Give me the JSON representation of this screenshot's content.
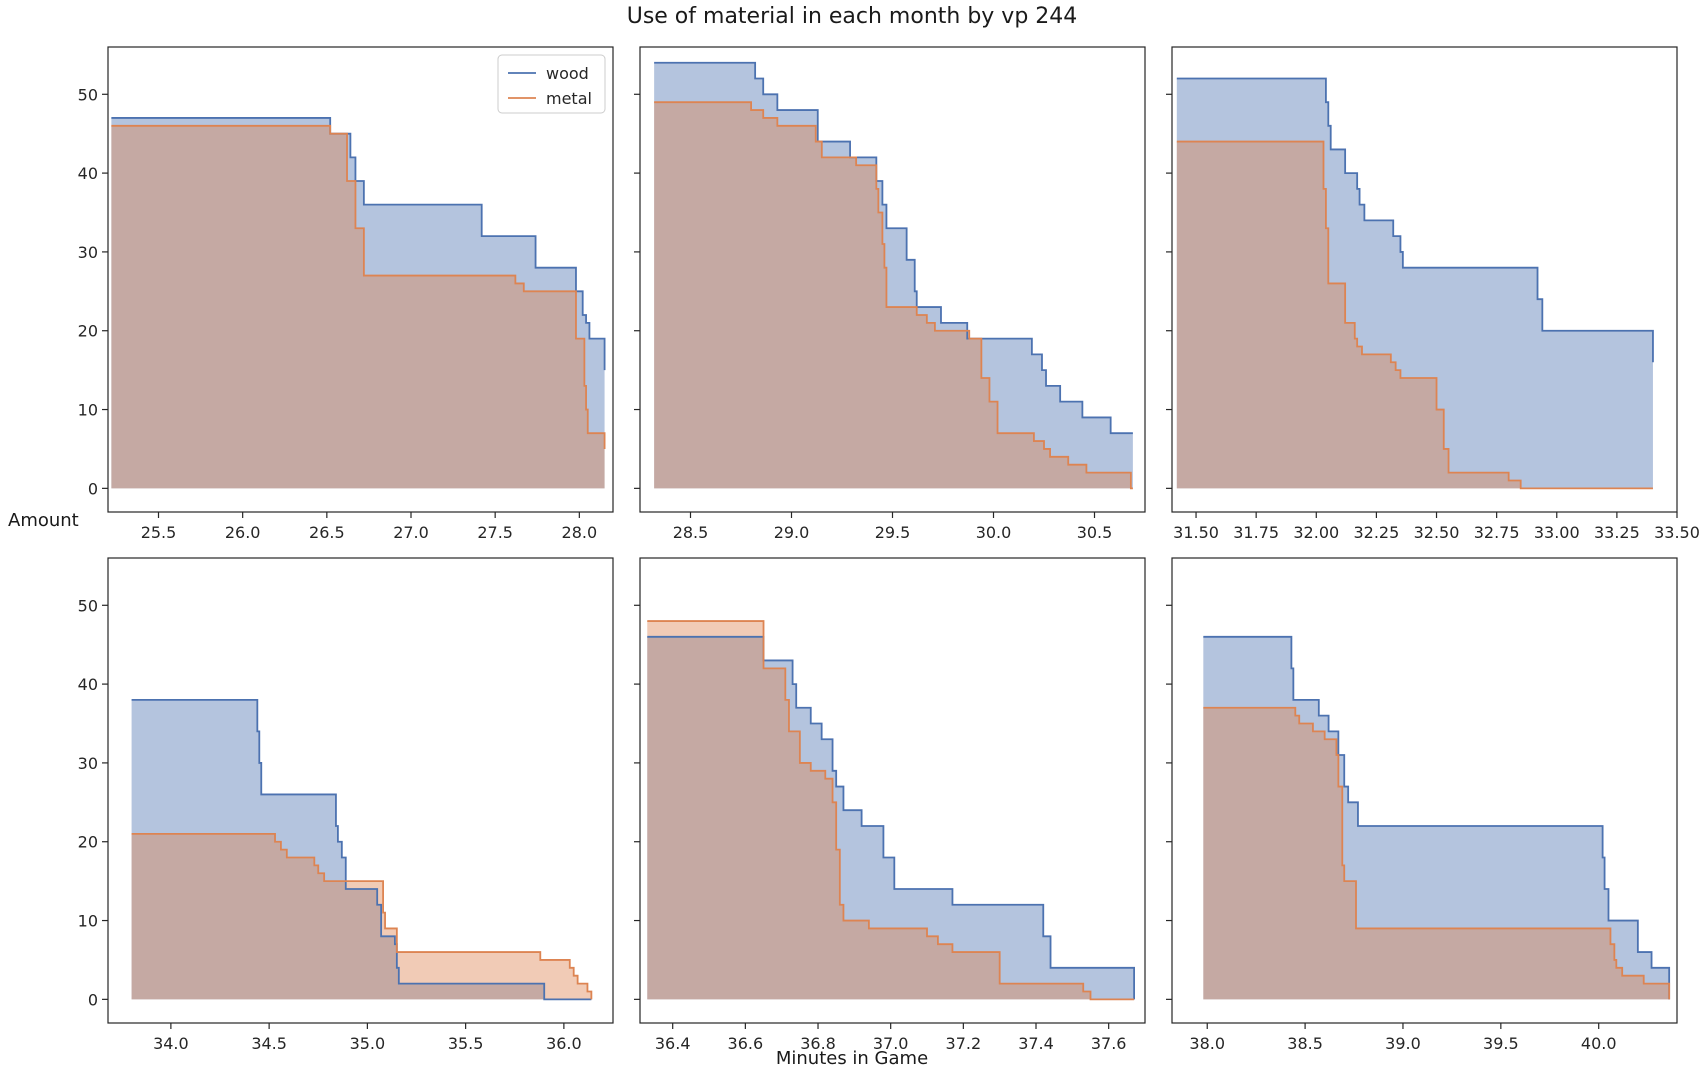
{
  "figure": {
    "title": "Use of material in each month by vp 244",
    "ylabel": "Amount",
    "xlabel": "Minutes in Game",
    "legend": {
      "placement": "top-right of first panel",
      "entries": [
        "wood",
        "metal"
      ]
    },
    "colors": {
      "wood": "#4c72b0",
      "metal": "#dd8452",
      "wood_fill": "#b3c3de",
      "metal_fill": "#f0c9b1",
      "overlap_fill": "#c6aca8"
    }
  },
  "chart_data": [
    {
      "type": "area",
      "step": "post",
      "xlim": [
        25.2,
        28.2
      ],
      "ylim": [
        -3,
        56
      ],
      "xticks": [
        25.5,
        26.0,
        26.5,
        27.0,
        27.5,
        28.0
      ],
      "xtick_labels": [
        "25.5",
        "26.0",
        "26.5",
        "27.0",
        "27.5",
        "28.0"
      ],
      "yticks": [
        0,
        10,
        20,
        30,
        40,
        50
      ],
      "ytick_labels": [
        "0",
        "10",
        "20",
        "30",
        "40",
        "50"
      ],
      "show_yticklabels": true,
      "show_xticklabels": true,
      "series": [
        {
          "name": "wood",
          "points": [
            [
              25.22,
              47
            ],
            [
              26.52,
              45
            ],
            [
              26.64,
              42
            ],
            [
              26.67,
              39
            ],
            [
              26.72,
              36
            ],
            [
              27.42,
              32
            ],
            [
              27.74,
              28
            ],
            [
              27.98,
              25
            ],
            [
              28.02,
              22
            ],
            [
              28.04,
              21
            ],
            [
              28.06,
              19
            ],
            [
              28.15,
              15
            ]
          ]
        },
        {
          "name": "metal",
          "points": [
            [
              25.22,
              46
            ],
            [
              26.52,
              45
            ],
            [
              26.62,
              39
            ],
            [
              26.67,
              33
            ],
            [
              26.72,
              27
            ],
            [
              27.62,
              26
            ],
            [
              27.67,
              25
            ],
            [
              27.98,
              19
            ],
            [
              28.03,
              13
            ],
            [
              28.04,
              10
            ],
            [
              28.05,
              7
            ],
            [
              28.15,
              5
            ]
          ]
        }
      ]
    },
    {
      "type": "area",
      "step": "post",
      "xlim": [
        28.25,
        30.75
      ],
      "ylim": [
        -3,
        56
      ],
      "xticks": [
        28.5,
        29.0,
        29.5,
        30.0,
        30.5
      ],
      "xtick_labels": [
        "28.5",
        "29.0",
        "29.5",
        "30.0",
        "30.5"
      ],
      "yticks": [
        0,
        10,
        20,
        30,
        40,
        50
      ],
      "ytick_labels": [
        "",
        "",
        "",
        "",
        "",
        ""
      ],
      "show_yticklabels": false,
      "show_xticklabels": true,
      "series": [
        {
          "name": "wood",
          "points": [
            [
              28.32,
              54
            ],
            [
              28.82,
              52
            ],
            [
              28.86,
              50
            ],
            [
              28.93,
              48
            ],
            [
              29.13,
              44
            ],
            [
              29.29,
              42
            ],
            [
              29.42,
              39
            ],
            [
              29.45,
              36
            ],
            [
              29.47,
              33
            ],
            [
              29.57,
              29
            ],
            [
              29.61,
              25
            ],
            [
              29.62,
              23
            ],
            [
              29.74,
              21
            ],
            [
              29.87,
              19
            ],
            [
              30.19,
              17
            ],
            [
              30.24,
              15
            ],
            [
              30.26,
              13
            ],
            [
              30.33,
              11
            ],
            [
              30.44,
              9
            ],
            [
              30.58,
              7
            ],
            [
              30.69,
              7
            ]
          ]
        },
        {
          "name": "metal",
          "points": [
            [
              28.32,
              49
            ],
            [
              28.8,
              48
            ],
            [
              28.86,
              47
            ],
            [
              28.93,
              46
            ],
            [
              29.12,
              44
            ],
            [
              29.15,
              42
            ],
            [
              29.32,
              41
            ],
            [
              29.42,
              38
            ],
            [
              29.43,
              35
            ],
            [
              29.45,
              31
            ],
            [
              29.46,
              28
            ],
            [
              29.47,
              23
            ],
            [
              29.62,
              22
            ],
            [
              29.67,
              21
            ],
            [
              29.71,
              20
            ],
            [
              29.88,
              19
            ],
            [
              29.94,
              14
            ],
            [
              29.98,
              11
            ],
            [
              30.02,
              7
            ],
            [
              30.2,
              6
            ],
            [
              30.25,
              5
            ],
            [
              30.28,
              4
            ],
            [
              30.37,
              3
            ],
            [
              30.46,
              2
            ],
            [
              30.68,
              0
            ],
            [
              30.69,
              0
            ]
          ]
        }
      ]
    },
    {
      "type": "area",
      "step": "post",
      "xlim": [
        31.4,
        33.5
      ],
      "ylim": [
        -3,
        56
      ],
      "xticks": [
        31.5,
        31.75,
        32.0,
        32.25,
        32.5,
        32.75,
        33.0,
        33.25,
        33.5
      ],
      "xtick_labels": [
        "31.50",
        "31.75",
        "32.00",
        "32.25",
        "32.50",
        "32.75",
        "33.00",
        "33.25",
        "33.50"
      ],
      "yticks": [
        0,
        10,
        20,
        30,
        40,
        50
      ],
      "ytick_labels": [
        "",
        "",
        "",
        "",
        "",
        ""
      ],
      "show_yticklabels": false,
      "show_xticklabels": true,
      "series": [
        {
          "name": "wood",
          "points": [
            [
              31.42,
              52
            ],
            [
              32.04,
              49
            ],
            [
              32.05,
              46
            ],
            [
              32.06,
              43
            ],
            [
              32.12,
              40
            ],
            [
              32.17,
              38
            ],
            [
              32.18,
              36
            ],
            [
              32.2,
              34
            ],
            [
              32.32,
              32
            ],
            [
              32.35,
              30
            ],
            [
              32.36,
              28
            ],
            [
              32.92,
              24
            ],
            [
              32.94,
              20
            ],
            [
              33.4,
              16
            ]
          ]
        },
        {
          "name": "metal",
          "points": [
            [
              31.42,
              44
            ],
            [
              32.03,
              38
            ],
            [
              32.04,
              33
            ],
            [
              32.05,
              26
            ],
            [
              32.12,
              21
            ],
            [
              32.16,
              19
            ],
            [
              32.17,
              18
            ],
            [
              32.19,
              17
            ],
            [
              32.31,
              16
            ],
            [
              32.33,
              15
            ],
            [
              32.35,
              14
            ],
            [
              32.5,
              10
            ],
            [
              32.53,
              5
            ],
            [
              32.55,
              2
            ],
            [
              32.8,
              1
            ],
            [
              32.85,
              0
            ],
            [
              33.4,
              0
            ]
          ]
        }
      ]
    },
    {
      "type": "area",
      "step": "post",
      "xlim": [
        33.68,
        36.25
      ],
      "ylim": [
        -3,
        56
      ],
      "xticks": [
        34.0,
        34.5,
        35.0,
        35.5,
        36.0
      ],
      "xtick_labels": [
        "34.0",
        "34.5",
        "35.0",
        "35.5",
        "36.0"
      ],
      "yticks": [
        0,
        10,
        20,
        30,
        40,
        50
      ],
      "ytick_labels": [
        "0",
        "10",
        "20",
        "30",
        "40",
        "50"
      ],
      "show_yticklabels": true,
      "show_xticklabels": true,
      "series": [
        {
          "name": "wood",
          "points": [
            [
              33.8,
              38
            ],
            [
              34.44,
              34
            ],
            [
              34.45,
              30
            ],
            [
              34.46,
              26
            ],
            [
              34.84,
              22
            ],
            [
              34.85,
              20
            ],
            [
              34.87,
              18
            ],
            [
              34.89,
              14
            ],
            [
              35.05,
              12
            ],
            [
              35.07,
              8
            ],
            [
              35.14,
              7
            ],
            [
              35.15,
              4
            ],
            [
              35.16,
              2
            ],
            [
              35.9,
              0
            ],
            [
              36.14,
              0
            ]
          ]
        },
        {
          "name": "metal",
          "points": [
            [
              33.8,
              21
            ],
            [
              34.53,
              20
            ],
            [
              34.56,
              19
            ],
            [
              34.59,
              18
            ],
            [
              34.73,
              17
            ],
            [
              34.75,
              16
            ],
            [
              34.78,
              15
            ],
            [
              34.94,
              15
            ],
            [
              35.08,
              11
            ],
            [
              35.09,
              9
            ],
            [
              35.15,
              6
            ],
            [
              35.88,
              5
            ],
            [
              36.03,
              4
            ],
            [
              36.05,
              3
            ],
            [
              36.07,
              2
            ],
            [
              36.12,
              1
            ],
            [
              36.14,
              0
            ]
          ]
        }
      ]
    },
    {
      "type": "area",
      "step": "post",
      "xlim": [
        36.31,
        37.7
      ],
      "ylim": [
        -3,
        56
      ],
      "xticks": [
        36.4,
        36.6,
        36.8,
        37.0,
        37.2,
        37.4,
        37.6
      ],
      "xtick_labels": [
        "36.4",
        "36.6",
        "36.8",
        "37.0",
        "37.2",
        "37.4",
        "37.6"
      ],
      "yticks": [
        0,
        10,
        20,
        30,
        40,
        50
      ],
      "ytick_labels": [
        "",
        "",
        "",
        "",
        "",
        ""
      ],
      "show_yticklabels": false,
      "show_xticklabels": true,
      "series": [
        {
          "name": "wood",
          "points": [
            [
              36.33,
              46
            ],
            [
              36.65,
              43
            ],
            [
              36.73,
              40
            ],
            [
              36.74,
              37
            ],
            [
              36.78,
              35
            ],
            [
              36.81,
              33
            ],
            [
              36.84,
              29
            ],
            [
              36.85,
              27
            ],
            [
              36.87,
              24
            ],
            [
              36.92,
              22
            ],
            [
              36.98,
              18
            ],
            [
              37.01,
              14
            ],
            [
              37.17,
              12
            ],
            [
              37.42,
              8
            ],
            [
              37.44,
              4
            ],
            [
              37.67,
              0
            ]
          ]
        },
        {
          "name": "metal",
          "points": [
            [
              36.33,
              48
            ],
            [
              36.65,
              42
            ],
            [
              36.71,
              38
            ],
            [
              36.72,
              34
            ],
            [
              36.75,
              30
            ],
            [
              36.78,
              29
            ],
            [
              36.82,
              28
            ],
            [
              36.84,
              25
            ],
            [
              36.85,
              19
            ],
            [
              36.86,
              12
            ],
            [
              36.87,
              10
            ],
            [
              36.94,
              9
            ],
            [
              37.1,
              8
            ],
            [
              37.13,
              7
            ],
            [
              37.17,
              6
            ],
            [
              37.3,
              2
            ],
            [
              37.53,
              1
            ],
            [
              37.55,
              0
            ],
            [
              37.67,
              0
            ]
          ]
        }
      ]
    },
    {
      "type": "area",
      "step": "post",
      "xlim": [
        37.82,
        40.4
      ],
      "ylim": [
        -3,
        56
      ],
      "xticks": [
        38.0,
        38.5,
        39.0,
        39.5,
        40.0
      ],
      "xtick_labels": [
        "38.0",
        "38.5",
        "39.0",
        "39.5",
        "40.0"
      ],
      "yticks": [
        0,
        10,
        20,
        30,
        40,
        50
      ],
      "ytick_labels": [
        "",
        "",
        "",
        "",
        "",
        ""
      ],
      "show_yticklabels": false,
      "show_xticklabels": true,
      "series": [
        {
          "name": "wood",
          "points": [
            [
              37.98,
              46
            ],
            [
              38.43,
              42
            ],
            [
              38.44,
              38
            ],
            [
              38.57,
              36
            ],
            [
              38.62,
              34
            ],
            [
              38.67,
              31
            ],
            [
              38.7,
              27
            ],
            [
              38.72,
              25
            ],
            [
              38.77,
              22
            ],
            [
              40.02,
              18
            ],
            [
              40.03,
              14
            ],
            [
              40.05,
              10
            ],
            [
              40.2,
              6
            ],
            [
              40.27,
              4
            ],
            [
              40.36,
              0
            ]
          ]
        },
        {
          "name": "metal",
          "points": [
            [
              37.98,
              37
            ],
            [
              38.45,
              36
            ],
            [
              38.47,
              35
            ],
            [
              38.54,
              34
            ],
            [
              38.6,
              33
            ],
            [
              38.66,
              31
            ],
            [
              38.67,
              27
            ],
            [
              38.69,
              17
            ],
            [
              38.7,
              15
            ],
            [
              38.76,
              9
            ],
            [
              40.06,
              7
            ],
            [
              40.08,
              5
            ],
            [
              40.09,
              4
            ],
            [
              40.12,
              3
            ],
            [
              40.23,
              2
            ],
            [
              40.36,
              0
            ]
          ]
        }
      ]
    }
  ]
}
